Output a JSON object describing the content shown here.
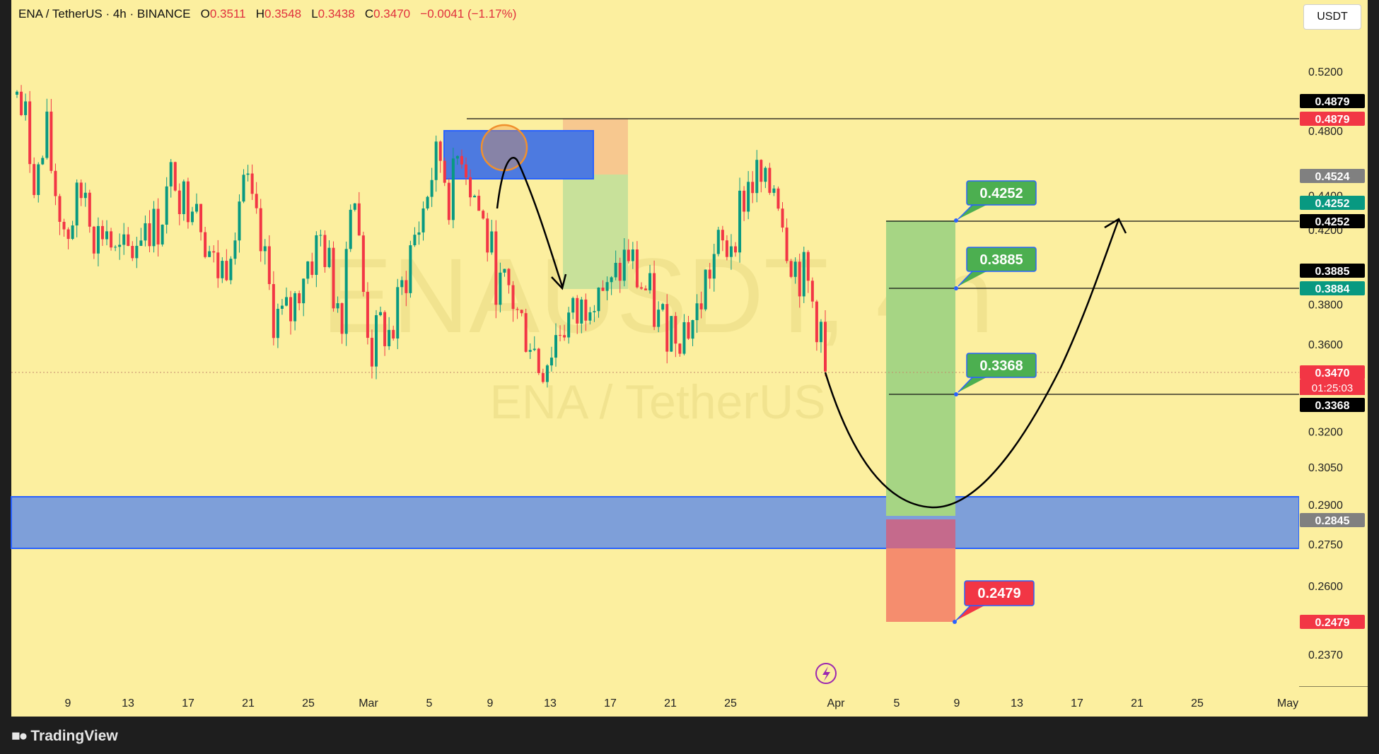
{
  "header": {
    "symbol": "ENA / TetherUS · 4h · BINANCE",
    "o_label": "O",
    "o_value": "0.3511",
    "h_label": "H",
    "h_value": "0.3548",
    "l_label": "L",
    "l_value": "0.3438",
    "c_label": "C",
    "c_value": "0.3470",
    "change": "−0.0041 (−1.17%)"
  },
  "currency_button": "USDT",
  "watermark": {
    "main": "ENAUSDT, 4h",
    "sub": "ENA / TetherUS"
  },
  "brand": "TradingView",
  "colors": {
    "background": "#fcef9f",
    "zone_blue": "#7e9fd9",
    "target_green": "#a6d584",
    "stop_red": "#f58d6e",
    "label_green": "#4caf50",
    "label_red": "#f23645"
  },
  "chart_data": {
    "type": "candlestick",
    "title": "ENA / TetherUS · 4h · BINANCE",
    "y_axis": {
      "ticks": [
        "0.5200",
        "0.4800",
        "0.4400",
        "0.4200",
        "0.3800",
        "0.3600",
        "0.3200",
        "0.3050",
        "0.2900",
        "0.2750",
        "0.2600",
        "0.2370"
      ],
      "scale": "log"
    },
    "x_axis": {
      "ticks": [
        "9",
        "13",
        "17",
        "21",
        "25",
        "Mar",
        "5",
        "9",
        "13",
        "17",
        "21",
        "25",
        "Apr",
        "5",
        "9",
        "13",
        "17",
        "21",
        "25",
        "May"
      ]
    },
    "price_tags": [
      {
        "value": "0.4879",
        "color": "#000000"
      },
      {
        "value": "0.4879",
        "color": "#f23645"
      },
      {
        "value": "0.4524",
        "color": "#808080"
      },
      {
        "value": "0.4252",
        "color": "#089981"
      },
      {
        "value": "0.4252",
        "color": "#000000"
      },
      {
        "value": "0.3885",
        "color": "#000000"
      },
      {
        "value": "0.3884",
        "color": "#089981"
      },
      {
        "value": "0.3470",
        "color": "#f23645"
      },
      {
        "value": "0.3368",
        "color": "#000000"
      },
      {
        "value": "0.2845",
        "color": "#808080"
      },
      {
        "value": "0.2479",
        "color": "#f23645"
      }
    ],
    "countdown": "01:25:03",
    "current_price": 0.347,
    "resistance_line": 0.4879,
    "support_zone": [
      0.2774,
      0.2918
    ],
    "supply_zone": [
      0.454,
      0.48
    ],
    "targets": [
      "0.4252",
      "0.3885",
      "0.3368"
    ],
    "stop": "0.2479",
    "entry": 0.2845,
    "trend": [
      [
        0.488,
        0.52
      ],
      [
        0.452,
        0.503
      ],
      [
        0.432,
        0.465
      ],
      [
        0.449,
        0.497
      ],
      [
        0.423,
        0.455
      ],
      [
        0.401,
        0.433
      ],
      [
        0.417,
        0.449
      ],
      [
        0.429,
        0.462
      ],
      [
        0.398,
        0.43
      ],
      [
        0.407,
        0.44
      ],
      [
        0.387,
        0.418
      ],
      [
        0.389,
        0.42
      ],
      [
        0.396,
        0.428
      ],
      [
        0.412,
        0.445
      ],
      [
        0.403,
        0.435
      ],
      [
        0.418,
        0.451
      ],
      [
        0.438,
        0.473
      ],
      [
        0.418,
        0.452
      ],
      [
        0.431,
        0.465
      ],
      [
        0.404,
        0.436
      ],
      [
        0.383,
        0.414
      ],
      [
        0.383,
        0.414
      ],
      [
        0.41,
        0.443
      ],
      [
        0.434,
        0.469
      ],
      [
        0.407,
        0.44
      ],
      [
        0.387,
        0.418
      ],
      [
        0.361,
        0.39
      ],
      [
        0.356,
        0.385
      ],
      [
        0.362,
        0.391
      ],
      [
        0.383,
        0.414
      ],
      [
        0.39,
        0.421
      ],
      [
        0.4,
        0.432
      ],
      [
        0.374,
        0.404
      ],
      [
        0.364,
        0.393
      ],
      [
        0.44,
        0.475
      ],
      [
        0.375,
        0.405
      ],
      [
        0.343,
        0.37
      ],
      [
        0.355,
        0.383
      ],
      [
        0.349,
        0.377
      ],
      [
        0.37,
        0.4
      ],
      [
        0.394,
        0.426
      ],
      [
        0.409,
        0.442
      ],
      [
        0.435,
        0.47
      ],
      [
        0.446,
        0.481
      ],
      [
        0.419,
        0.453
      ],
      [
        0.456,
        0.493
      ],
      [
        0.431,
        0.466
      ],
      [
        0.412,
        0.445
      ],
      [
        0.392,
        0.424
      ],
      [
        0.371,
        0.401
      ],
      [
        0.372,
        0.401
      ],
      [
        0.356,
        0.385
      ],
      [
        0.351,
        0.379
      ],
      [
        0.336,
        0.362
      ],
      [
        0.342,
        0.37
      ],
      [
        0.354,
        0.382
      ],
      [
        0.358,
        0.387
      ],
      [
        0.358,
        0.387
      ],
      [
        0.373,
        0.403
      ],
      [
        0.379,
        0.409
      ],
      [
        0.367,
        0.396
      ],
      [
        0.381,
        0.412
      ],
      [
        0.391,
        0.423
      ],
      [
        0.377,
        0.407
      ],
      [
        0.37,
        0.4
      ],
      [
        0.357,
        0.385
      ],
      [
        0.356,
        0.384
      ],
      [
        0.355,
        0.383
      ],
      [
        0.355,
        0.383
      ],
      [
        0.36,
        0.389
      ],
      [
        0.38,
        0.41
      ],
      [
        0.392,
        0.423
      ],
      [
        0.394,
        0.425
      ],
      [
        0.409,
        0.442
      ],
      [
        0.428,
        0.462
      ],
      [
        0.433,
        0.468
      ],
      [
        0.422,
        0.456
      ],
      [
        0.434,
        0.469
      ],
      [
        0.401,
        0.433
      ],
      [
        0.384,
        0.414
      ],
      [
        0.378,
        0.408
      ],
      [
        0.361,
        0.389
      ],
      [
        0.347,
        0.374
      ]
    ],
    "projection": "decline to 0.2845 support zone then rally to 0.4252"
  }
}
